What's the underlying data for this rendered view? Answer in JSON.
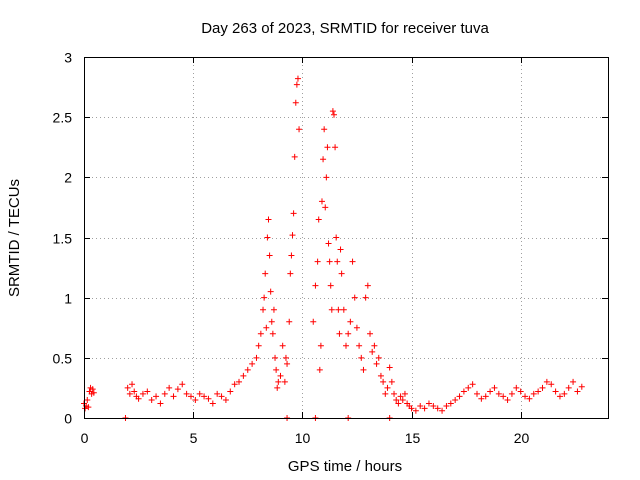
{
  "chart_data": {
    "type": "scatter",
    "title": "Day 263 of 2023, SRMTID for receiver tuva",
    "xlabel": "GPS time / hours",
    "ylabel": "SRMTID / TECUs",
    "xlim": [
      0,
      24
    ],
    "ylim": [
      0,
      3
    ],
    "xticks": [
      0,
      5,
      10,
      15,
      20
    ],
    "yticks": [
      0,
      0.5,
      1,
      1.5,
      2,
      2.5,
      3
    ],
    "ytick_labels": [
      "0",
      "0.5",
      "1",
      "1.5",
      "2",
      "2.5",
      "3"
    ],
    "grid": true,
    "marker": "+",
    "color": "#ff0000",
    "series": [
      {
        "name": "SRMTID",
        "x": [
          0.0,
          0.05,
          0.1,
          0.15,
          0.2,
          0.25,
          0.3,
          0.35,
          0.4,
          0.45,
          2.0,
          2.1,
          2.2,
          2.3,
          2.4,
          2.5,
          2.7,
          2.9,
          3.1,
          3.3,
          3.5,
          3.7,
          3.9,
          4.1,
          4.3,
          4.5,
          4.7,
          4.9,
          5.1,
          5.3,
          5.5,
          5.7,
          5.9,
          6.1,
          6.3,
          6.5,
          6.7,
          6.9,
          7.1,
          7.3,
          7.5,
          7.7,
          7.9,
          8.0,
          8.1,
          8.2,
          8.25,
          8.3,
          8.35,
          8.4,
          8.45,
          8.5,
          8.55,
          8.6,
          8.65,
          8.7,
          8.75,
          8.8,
          8.85,
          8.9,
          9.0,
          9.1,
          9.2,
          9.25,
          9.3,
          9.4,
          9.45,
          9.5,
          9.55,
          9.6,
          9.65,
          9.7,
          9.75,
          9.8,
          9.85,
          10.5,
          10.6,
          10.7,
          10.75,
          10.8,
          10.85,
          10.9,
          10.95,
          11.0,
          11.05,
          11.1,
          11.15,
          11.2,
          11.25,
          11.3,
          11.35,
          11.4,
          11.45,
          11.5,
          11.55,
          11.6,
          11.65,
          11.7,
          11.75,
          11.8,
          11.9,
          12.0,
          12.1,
          12.2,
          12.3,
          12.4,
          12.5,
          12.6,
          12.7,
          12.8,
          12.9,
          13.0,
          13.1,
          13.2,
          13.3,
          13.4,
          13.5,
          13.6,
          13.7,
          13.8,
          13.9,
          14.0,
          14.1,
          14.2,
          14.3,
          14.4,
          14.5,
          14.6,
          14.7,
          14.8,
          14.9,
          15.0,
          15.2,
          15.4,
          15.6,
          15.8,
          16.0,
          16.2,
          16.4,
          16.6,
          16.8,
          17.0,
          17.2,
          17.4,
          17.6,
          17.8,
          18.0,
          18.2,
          18.4,
          18.6,
          18.8,
          19.0,
          19.2,
          19.4,
          19.6,
          19.8,
          20.0,
          20.2,
          20.4,
          20.6,
          20.8,
          21.0,
          21.2,
          21.4,
          21.6,
          21.8,
          22.0,
          22.2,
          22.4,
          22.6,
          22.8,
          1.9,
          9.3,
          10.6,
          12.1,
          14.0
        ],
        "y": [
          0.12,
          0.08,
          0.1,
          0.15,
          0.09,
          0.22,
          0.25,
          0.2,
          0.24,
          0.21,
          0.25,
          0.2,
          0.28,
          0.22,
          0.18,
          0.16,
          0.2,
          0.22,
          0.15,
          0.18,
          0.12,
          0.2,
          0.25,
          0.18,
          0.24,
          0.28,
          0.2,
          0.18,
          0.15,
          0.2,
          0.18,
          0.16,
          0.12,
          0.2,
          0.18,
          0.15,
          0.22,
          0.28,
          0.3,
          0.35,
          0.4,
          0.45,
          0.5,
          0.6,
          0.7,
          0.9,
          1.0,
          1.2,
          0.75,
          1.5,
          1.65,
          1.35,
          1.05,
          0.8,
          0.7,
          0.9,
          0.5,
          0.4,
          0.25,
          0.3,
          0.35,
          0.6,
          0.3,
          0.5,
          0.45,
          0.8,
          1.2,
          1.35,
          1.52,
          1.7,
          2.17,
          2.62,
          2.77,
          2.82,
          2.4,
          0.8,
          1.1,
          1.3,
          1.65,
          0.4,
          0.6,
          1.8,
          2.15,
          2.4,
          1.75,
          2.0,
          2.25,
          1.45,
          1.3,
          1.1,
          0.9,
          2.55,
          2.52,
          2.25,
          1.5,
          1.3,
          0.9,
          0.7,
          1.4,
          1.2,
          0.9,
          0.6,
          0.7,
          0.8,
          1.3,
          1.0,
          0.75,
          0.6,
          0.5,
          0.4,
          1.0,
          1.1,
          0.7,
          0.55,
          0.6,
          0.45,
          0.5,
          0.35,
          0.3,
          0.2,
          0.25,
          0.42,
          0.3,
          0.2,
          0.15,
          0.12,
          0.18,
          0.15,
          0.2,
          0.12,
          0.1,
          0.08,
          0.06,
          0.1,
          0.08,
          0.12,
          0.1,
          0.08,
          0.06,
          0.1,
          0.12,
          0.15,
          0.18,
          0.22,
          0.25,
          0.28,
          0.2,
          0.16,
          0.18,
          0.22,
          0.25,
          0.2,
          0.18,
          0.15,
          0.2,
          0.25,
          0.22,
          0.18,
          0.16,
          0.2,
          0.22,
          0.25,
          0.3,
          0.28,
          0.22,
          0.18,
          0.2,
          0.25,
          0.3,
          0.22,
          0.26,
          0.0,
          0.0,
          0.0,
          0.0,
          0.0
        ]
      }
    ]
  }
}
